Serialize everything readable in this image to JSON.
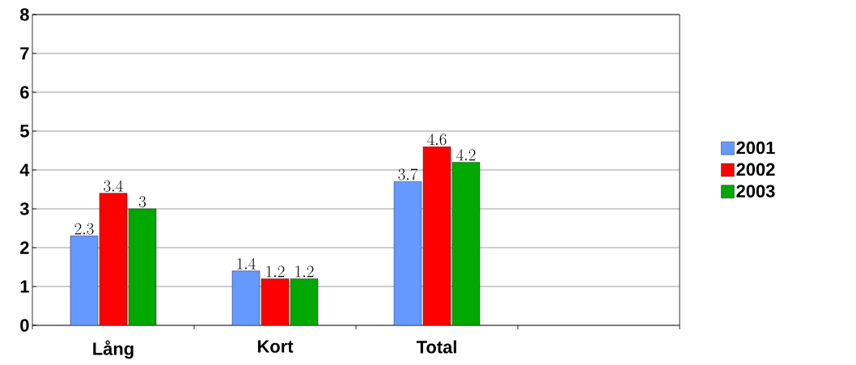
{
  "chart_data": {
    "type": "bar",
    "categories": [
      "Lång",
      "Kort",
      "Total",
      null
    ],
    "series": [
      {
        "name": "2001",
        "color": "#6699ff",
        "values": [
          2.3,
          1.4,
          3.7,
          null
        ]
      },
      {
        "name": "2002",
        "color": "#ff0000",
        "values": [
          3.4,
          1.2,
          4.6,
          null
        ]
      },
      {
        "name": "2003",
        "color": "#00a800",
        "values": [
          3,
          1.2,
          4.2,
          null
        ]
      }
    ],
    "ylim": [
      0,
      8
    ],
    "yticks": [
      0,
      1,
      2,
      3,
      4,
      5,
      6,
      7,
      8
    ],
    "grid": "y",
    "legend": "right",
    "data_labels": true
  }
}
